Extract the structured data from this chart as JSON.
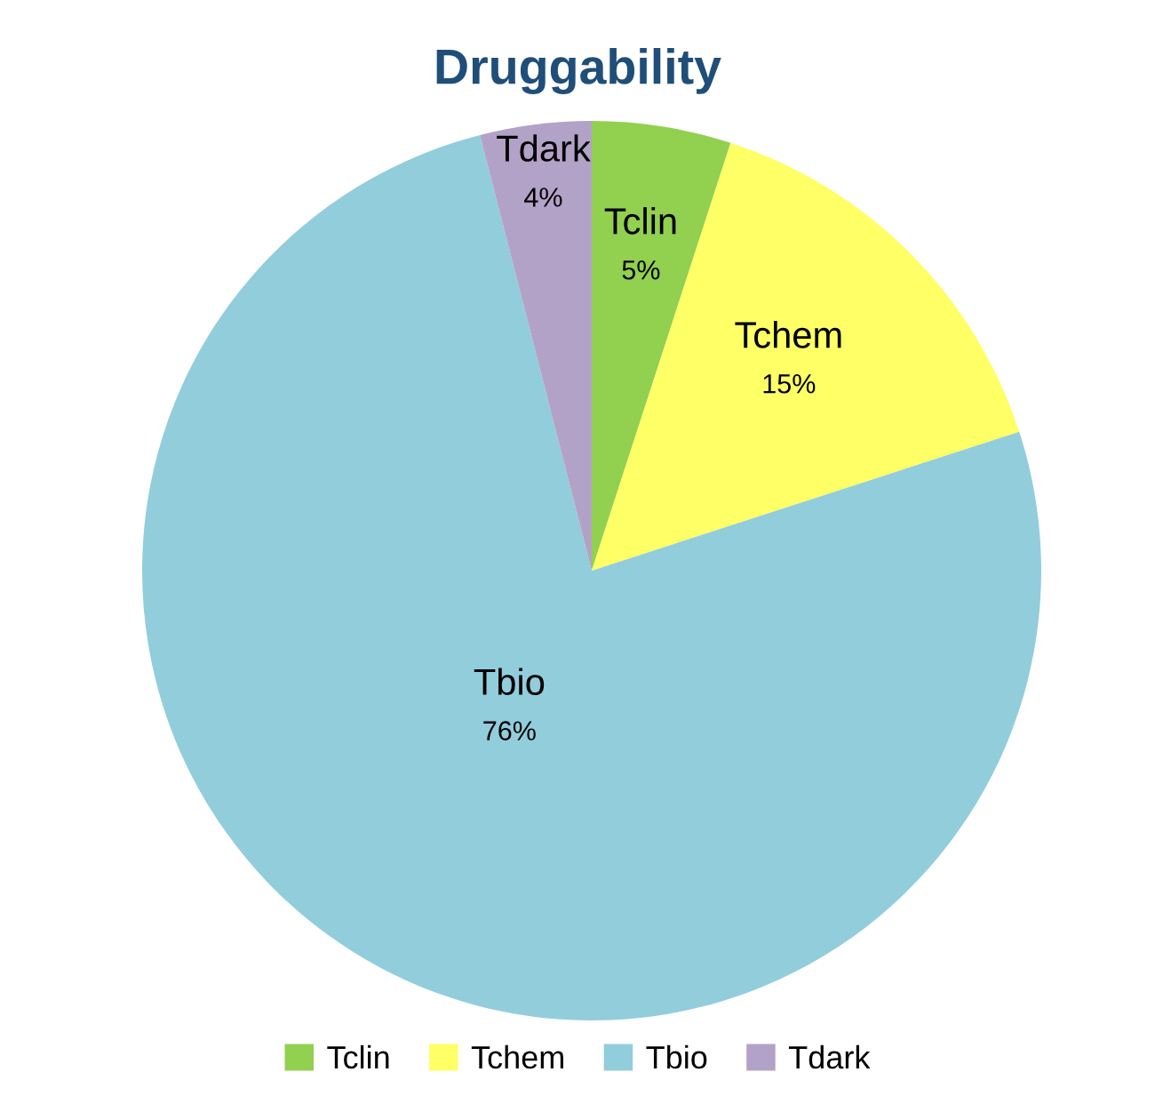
{
  "chart_data": {
    "type": "pie",
    "title": "Druggability",
    "categories": [
      "Tclin",
      "Tchem",
      "Tbio",
      "Tdark"
    ],
    "values": [
      5,
      15,
      76,
      4
    ],
    "colors": [
      "#92d050",
      "#ffff66",
      "#92cddc",
      "#b3a2c7"
    ],
    "value_labels": [
      "5%",
      "15%",
      "76%",
      "4%"
    ],
    "legend": "bottom"
  }
}
